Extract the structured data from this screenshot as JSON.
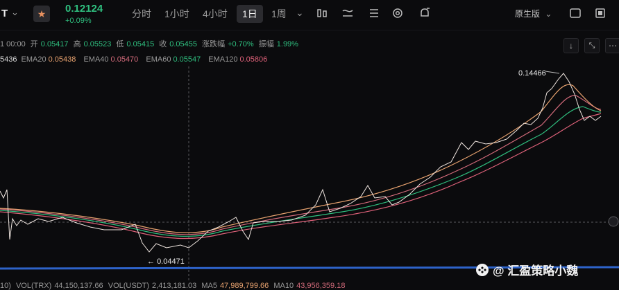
{
  "header": {
    "symbol_fragment": "T",
    "price": "0.12124",
    "change": "+0.09%",
    "timeframes": [
      "分时",
      "1小时",
      "4小时",
      "1日",
      "1周"
    ],
    "active_timeframe_index": 3,
    "version_label": "原生版"
  },
  "ohlc": {
    "date_fragment": "1 00:00",
    "open_label": "开",
    "open": "0.05417",
    "high_label": "高",
    "high": "0.05523",
    "low_label": "低",
    "low": "0.05415",
    "close_label": "收",
    "close": "0.05455",
    "change_label": "涨跌幅",
    "change": "+0.70%",
    "amp_label": "振幅",
    "amp": "1.99%"
  },
  "ema": {
    "first_fragment": "5436",
    "items": [
      {
        "label": "EMA20",
        "value": "0.05438",
        "color": "#e7a26f"
      },
      {
        "label": "EMA40",
        "value": "0.05470",
        "color": "#d26a7a"
      },
      {
        "label": "EMA60",
        "value": "0.05547",
        "color": "#2fbf7f"
      },
      {
        "label": "EMA120",
        "value": "0.05806",
        "color": "#e0627a"
      }
    ]
  },
  "chart": {
    "high_marker": "0.14466",
    "low_marker": "0.04471"
  },
  "volume": {
    "prefix": "10)",
    "vol_trx_label": "VOL(TRX)",
    "vol_trx": "44,150,137.66",
    "vol_usdt_label": "VOL(USDT)",
    "vol_usdt": "2,413,181.03",
    "ma5_label": "MA5",
    "ma5": "47,989,799.66",
    "ma10_label": "MA10",
    "ma10": "43,956,359.18"
  },
  "watermark": "@ 汇盈策略小魏",
  "colors": {
    "up": "#2fbf7f",
    "down": "#e0627a",
    "baseline": "#2e63c9"
  }
}
